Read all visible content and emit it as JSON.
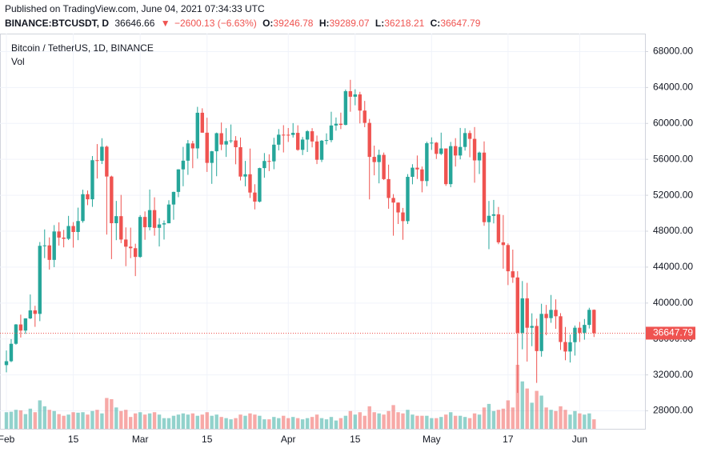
{
  "header": {
    "published": "Published on TradingView.com, June 04, 2021 07:34:33 UTC",
    "symbol": "BINANCE:BTCUSDT, D",
    "last": "36646.66",
    "arrow": "▼",
    "change": "−2600.13 (−6.63%)",
    "ohlc": [
      {
        "label": "O:",
        "value": "39246.78"
      },
      {
        "label": "H:",
        "value": "39289.07"
      },
      {
        "label": "L:",
        "value": "36218.21"
      },
      {
        "label": "C:",
        "value": "36647.79"
      }
    ]
  },
  "chart_data": {
    "type": "candlestick",
    "title": "Bitcoin / TetherUS, 1D, BINANCE",
    "volume_label": "Vol",
    "up_color": "#26a69a",
    "down_color": "#ef5350",
    "grid": true,
    "last_price": 36647.79,
    "ylim": [
      26000,
      70000
    ],
    "yticks": [
      {
        "value": 28000,
        "label": "28000.00"
      },
      {
        "value": 32000,
        "label": "32000.00"
      },
      {
        "value": 36000,
        "label": "36000.00"
      },
      {
        "value": 40000,
        "label": "40000.00"
      },
      {
        "value": 44000,
        "label": "44000.00"
      },
      {
        "value": 48000,
        "label": "48000.00"
      },
      {
        "value": 52000,
        "label": "52000.00"
      },
      {
        "value": 56000,
        "label": "56000.00"
      },
      {
        "value": 60000,
        "label": "60000.00"
      },
      {
        "value": 64000,
        "label": "64000.00"
      },
      {
        "value": 68000,
        "label": "68000.00"
      }
    ],
    "xticks": [
      {
        "value": "2021-02-01",
        "label": "Feb"
      },
      {
        "value": "2021-02-15",
        "label": "15"
      },
      {
        "value": "2021-03-01",
        "label": "Mar"
      },
      {
        "value": "2021-03-15",
        "label": "15"
      },
      {
        "value": "2021-04-01",
        "label": "Apr"
      },
      {
        "value": "2021-04-15",
        "label": "15"
      },
      {
        "value": "2021-05-01",
        "label": "May"
      },
      {
        "value": "2021-05-17",
        "label": "17"
      },
      {
        "value": "2021-06-01",
        "label": "Jun"
      }
    ],
    "categories": [
      "2021-02-01",
      "2021-02-02",
      "2021-02-03",
      "2021-02-04",
      "2021-02-05",
      "2021-02-06",
      "2021-02-07",
      "2021-02-08",
      "2021-02-09",
      "2021-02-10",
      "2021-02-11",
      "2021-02-12",
      "2021-02-13",
      "2021-02-14",
      "2021-02-15",
      "2021-02-16",
      "2021-02-17",
      "2021-02-18",
      "2021-02-19",
      "2021-02-20",
      "2021-02-21",
      "2021-02-22",
      "2021-02-23",
      "2021-02-24",
      "2021-02-25",
      "2021-02-26",
      "2021-02-27",
      "2021-02-28",
      "2021-03-01",
      "2021-03-02",
      "2021-03-03",
      "2021-03-04",
      "2021-03-05",
      "2021-03-06",
      "2021-03-07",
      "2021-03-08",
      "2021-03-09",
      "2021-03-10",
      "2021-03-11",
      "2021-03-12",
      "2021-03-13",
      "2021-03-14",
      "2021-03-15",
      "2021-03-16",
      "2021-03-17",
      "2021-03-18",
      "2021-03-19",
      "2021-03-20",
      "2021-03-21",
      "2021-03-22",
      "2021-03-23",
      "2021-03-24",
      "2021-03-25",
      "2021-03-26",
      "2021-03-27",
      "2021-03-28",
      "2021-03-29",
      "2021-03-30",
      "2021-03-31",
      "2021-04-01",
      "2021-04-02",
      "2021-04-03",
      "2021-04-04",
      "2021-04-05",
      "2021-04-06",
      "2021-04-07",
      "2021-04-08",
      "2021-04-09",
      "2021-04-10",
      "2021-04-11",
      "2021-04-12",
      "2021-04-13",
      "2021-04-14",
      "2021-04-15",
      "2021-04-16",
      "2021-04-17",
      "2021-04-18",
      "2021-04-19",
      "2021-04-20",
      "2021-04-21",
      "2021-04-22",
      "2021-04-23",
      "2021-04-24",
      "2021-04-25",
      "2021-04-26",
      "2021-04-27",
      "2021-04-28",
      "2021-04-29",
      "2021-04-30",
      "2021-05-01",
      "2021-05-02",
      "2021-05-03",
      "2021-05-04",
      "2021-05-05",
      "2021-05-06",
      "2021-05-07",
      "2021-05-08",
      "2021-05-09",
      "2021-05-10",
      "2021-05-11",
      "2021-05-12",
      "2021-05-13",
      "2021-05-14",
      "2021-05-15",
      "2021-05-16",
      "2021-05-17",
      "2021-05-18",
      "2021-05-19",
      "2021-05-20",
      "2021-05-21",
      "2021-05-22",
      "2021-05-23",
      "2021-05-24",
      "2021-05-25",
      "2021-05-26",
      "2021-05-27",
      "2021-05-28",
      "2021-05-29",
      "2021-05-30",
      "2021-05-31",
      "2021-06-01",
      "2021-06-02",
      "2021-06-03",
      "2021-06-04"
    ],
    "open": [
      33092,
      33526,
      35466,
      37618,
      36936,
      38290,
      39186,
      38795,
      46374,
      46420,
      44807,
      47969,
      47287,
      47153,
      48577,
      47911,
      49133,
      52119,
      51552,
      55906,
      55841,
      57408,
      54087,
      48891,
      49676,
      47073,
      46276,
      46106,
      45135,
      49587,
      48440,
      50349,
      48374,
      48751,
      48882,
      50971,
      52375,
      54884,
      55851,
      57773,
      57221,
      61188,
      58968,
      55605,
      56900,
      58912,
      57648,
      58030,
      58102,
      57351,
      54083,
      54340,
      52303,
      51293,
      55025,
      55817,
      55777,
      57635,
      58746,
      58740,
      58720,
      58950,
      57059,
      58203,
      59129,
      57991,
      55953,
      58077,
      58142,
      59769,
      59964,
      59835,
      63588,
      62971,
      63229,
      61429,
      60058,
      56274,
      55696,
      56499,
      53800,
      51701,
      51187,
      50089,
      49121,
      54053,
      55071,
      54884,
      53584,
      57796,
      57857,
      56610,
      57213,
      53241,
      57473,
      56428,
      57380,
      58928,
      58280,
      55883,
      56751,
      49007,
      49716,
      49880,
      46760,
      46456,
      43538,
      42849,
      36691,
      40526,
      37252,
      37449,
      34655,
      38796,
      38324,
      39241,
      38529,
      35664,
      34605,
      35641,
      37253,
      36693,
      37568,
      39246.78
    ],
    "high": [
      34717,
      35984,
      37662,
      38708,
      38310,
      40955,
      39700,
      46794,
      48200,
      47310,
      48678,
      48985,
      48150,
      49707,
      49010,
      50623,
      52618,
      52530,
      56368,
      57700,
      58352,
      57533,
      54183,
      51374,
      52041,
      48424,
      48395,
      46607,
      49790,
      50200,
      52640,
      51773,
      49448,
      49200,
      51450,
      52402,
      54895,
      57387,
      58150,
      58058,
      61844,
      61683,
      60633,
      56938,
      58981,
      60100,
      59474,
      59880,
      58589,
      58430,
      55830,
      57200,
      53230,
      55073,
      56700,
      56559,
      58400,
      59368,
      59800,
      59490,
      60036,
      59791,
      58493,
      59251,
      59474,
      58650,
      58153,
      58894,
      61300,
      60659,
      61200,
      63774,
      64854,
      63800,
      63520,
      62506,
      60499,
      57526,
      57076,
      56757,
      55410,
      52130,
      51200,
      50591,
      54356,
      55460,
      56428,
      55200,
      57963,
      58448,
      57934,
      58973,
      57200,
      57939,
      58360,
      59500,
      59464,
      59210,
      59595,
      56862,
      58000,
      51367,
      51483,
      50700,
      49800,
      46643,
      45950,
      43546,
      42451,
      42250,
      38856,
      38270,
      39920,
      39791,
      40900,
      40411,
      38877,
      37338,
      36488,
      37499,
      37894,
      38225,
      39476,
      39289.07
    ],
    "low": [
      32296,
      33418,
      35362,
      36161,
      36570,
      38215,
      37351,
      37988,
      45000,
      43727,
      43994,
      46400,
      46202,
      47014,
      46174,
      47003,
      48947,
      50901,
      50710,
      53863,
      55477,
      47622,
      44892,
      47003,
      46674,
      44106,
      45000,
      43000,
      45042,
      47047,
      48100,
      47500,
      46300,
      47070,
      48882,
      49274,
      51789,
      53005,
      54272,
      55013,
      56078,
      58966,
      54600,
      53271,
      54123,
      57023,
      56270,
      57820,
      55450,
      53650,
      53000,
      51700,
      50427,
      51200,
      53950,
      54691,
      54900,
      57000,
      56769,
      57935,
      58428,
      56958,
      56478,
      56817,
      57333,
      55473,
      55700,
      57654,
      57904,
      59194,
      59369,
      59791,
      61301,
      62020,
      60000,
      59580,
      51541,
      54221,
      53329,
      53695,
      50500,
      47500,
      48800,
      47044,
      48800,
      53222,
      53813,
      52330,
      53013,
      57052,
      56044,
      56478,
      53046,
      52900,
      55200,
      56000,
      56975,
      56235,
      53400,
      54370,
      48600,
      46000,
      48868,
      46555,
      43825,
      42001,
      42250,
      30000,
      34850,
      33488,
      35200,
      31111,
      34031,
      36419,
      37800,
      37134,
      34779,
      33632,
      33379,
      34153,
      35666,
      35920,
      37170,
      36218.21
    ],
    "close": [
      33526,
      35466,
      37618,
      36936,
      38290,
      39186,
      38795,
      46374,
      46420,
      44807,
      47969,
      47287,
      47153,
      48577,
      47911,
      49133,
      52119,
      51552,
      55906,
      55841,
      57408,
      54087,
      48891,
      49676,
      47073,
      46276,
      46106,
      45135,
      49587,
      48440,
      50349,
      48374,
      48751,
      48882,
      50971,
      52375,
      54884,
      55851,
      57773,
      57221,
      61188,
      58968,
      55605,
      56900,
      58912,
      57648,
      58030,
      58102,
      57351,
      54083,
      54340,
      52303,
      51293,
      55025,
      55817,
      55777,
      57635,
      58746,
      58740,
      58720,
      58950,
      57059,
      58203,
      59129,
      57991,
      55953,
      58077,
      58142,
      59769,
      59964,
      59835,
      63588,
      62971,
      63229,
      61429,
      60058,
      56274,
      55696,
      56499,
      53800,
      51701,
      51187,
      50089,
      49121,
      54053,
      55071,
      54884,
      53584,
      57796,
      57857,
      56610,
      57213,
      53241,
      57473,
      56428,
      57380,
      58928,
      58280,
      55883,
      56751,
      49007,
      49716,
      49880,
      46760,
      46456,
      43538,
      42849,
      36691,
      40526,
      37252,
      37449,
      34655,
      38796,
      38324,
      39241,
      38529,
      35664,
      34605,
      35641,
      37253,
      36693,
      37568,
      39246,
      36647.79
    ],
    "volume": [
      70000,
      72000,
      80000,
      78000,
      62000,
      85000,
      70000,
      120000,
      95000,
      80000,
      75000,
      62000,
      55000,
      60000,
      70000,
      68000,
      70000,
      60000,
      75000,
      80000,
      65000,
      130000,
      125000,
      90000,
      75000,
      80000,
      50000,
      65000,
      70000,
      60000,
      65000,
      70000,
      60000,
      45000,
      45000,
      55000,
      60000,
      65000,
      60000,
      65000,
      55000,
      60000,
      70000,
      55000,
      60000,
      50000,
      45000,
      40000,
      45000,
      60000,
      55000,
      65000,
      60000,
      55000,
      40000,
      40000,
      50000,
      45000,
      55000,
      45000,
      50000,
      45000,
      40000,
      45000,
      50000,
      60000,
      45000,
      40000,
      50000,
      35000,
      45000,
      55000,
      75000,
      60000,
      70000,
      55000,
      95000,
      70000,
      65000,
      60000,
      75000,
      100000,
      70000,
      65000,
      80000,
      60000,
      55000,
      55000,
      55000,
      45000,
      45000,
      50000,
      60000,
      70000,
      55000,
      55000,
      50000,
      45000,
      65000,
      60000,
      90000,
      105000,
      75000,
      80000,
      85000,
      120000,
      90000,
      270000,
      200000,
      170000,
      110000,
      160000,
      140000,
      90000,
      80000,
      75000,
      95000,
      80000,
      60000,
      75000,
      65000,
      60000,
      65000,
      40000
    ]
  }
}
